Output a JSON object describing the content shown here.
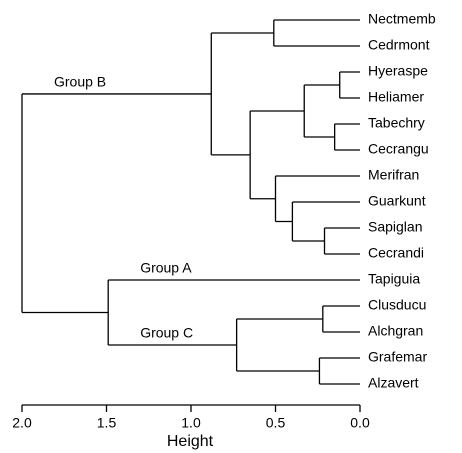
{
  "chart_data": {
    "type": "dendrogram",
    "x_label": "Height",
    "xlim": [
      2,
      0
    ],
    "xticks": [
      {
        "value": 2,
        "label": "2.0"
      },
      {
        "value": 1.5,
        "label": "1.5"
      },
      {
        "value": 1,
        "label": "1.0"
      },
      {
        "value": 0.5,
        "label": "0.5"
      },
      {
        "value": 0,
        "label": "0.0"
      }
    ],
    "color": "#000000",
    "tree": {
      "height": 2.0,
      "children": [
        {
          "label": "Group B",
          "height": 0.88,
          "children": [
            {
              "height": 0.51,
              "children": [
                {
                  "label": "Nectmemb"
                },
                {
                  "label": "Cedrmont"
                }
              ]
            },
            {
              "height": 0.65,
              "children": [
                {
                  "height": 0.33,
                  "children": [
                    {
                      "height": 0.12,
                      "children": [
                        {
                          "label": "Hyeraspe"
                        },
                        {
                          "label": "Heliamer"
                        }
                      ]
                    },
                    {
                      "height": 0.15,
                      "children": [
                        {
                          "label": "Tabechry"
                        },
                        {
                          "label": "Cecrangu"
                        }
                      ]
                    }
                  ]
                },
                {
                  "height": 0.5,
                  "children": [
                    {
                      "label": "Merifran"
                    },
                    {
                      "height": 0.4,
                      "children": [
                        {
                          "label": "Guarkunt"
                        },
                        {
                          "height": 0.21,
                          "children": [
                            {
                              "label": "Sapiglan"
                            },
                            {
                              "label": "Cecrandi"
                            }
                          ]
                        }
                      ]
                    }
                  ]
                }
              ]
            }
          ]
        },
        {
          "height": 1.49,
          "children": [
            {
              "label": "Tapiguia",
              "group": "Group A"
            },
            {
              "label": "Group C",
              "height": 0.73,
              "children": [
                {
                  "height": 0.22,
                  "children": [
                    {
                      "label": "Clusducu"
                    },
                    {
                      "label": "Alchgran"
                    }
                  ]
                },
                {
                  "height": 0.24,
                  "children": [
                    {
                      "label": "Grafemar"
                    },
                    {
                      "label": "Alzavert"
                    }
                  ]
                }
              ]
            }
          ]
        }
      ]
    }
  }
}
